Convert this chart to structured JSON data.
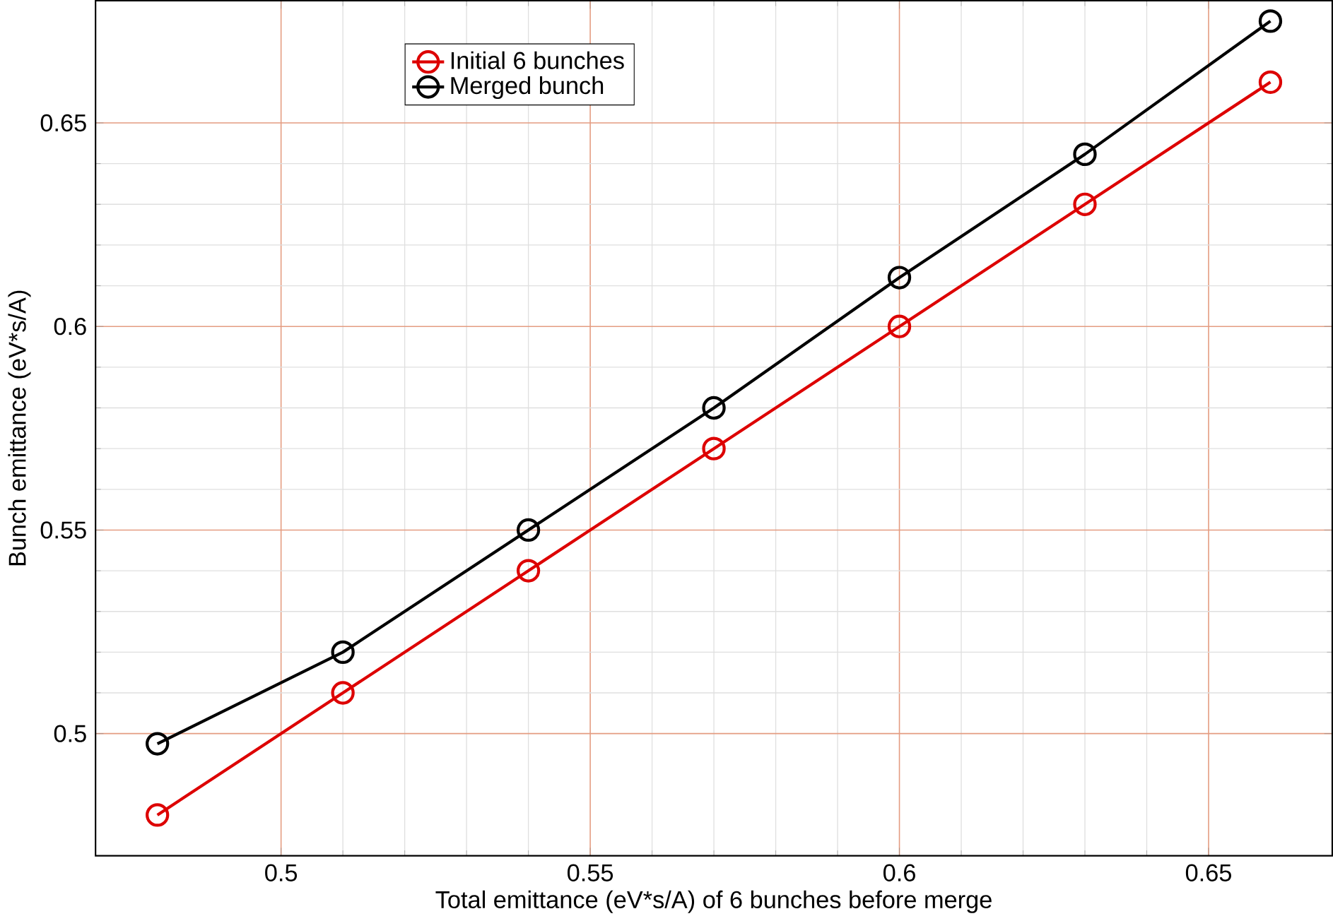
{
  "chart_data": {
    "type": "line",
    "xlabel": "Total emittance (eV*s/A) of 6 bunches before merge",
    "ylabel": "Bunch emittance (eV*s/A)",
    "x": [
      0.48,
      0.51,
      0.54,
      0.57,
      0.6,
      0.63,
      0.66
    ],
    "series": [
      {
        "name": "Initial 6 bunches",
        "color": "#dd0000",
        "values": [
          0.48,
          0.51,
          0.54,
          0.57,
          0.6,
          0.63,
          0.66
        ]
      },
      {
        "name": "Merged bunch",
        "color": "#000000",
        "values": [
          0.4975,
          0.52,
          0.55,
          0.58,
          0.612,
          0.6423,
          0.675
        ]
      }
    ],
    "xlim": [
      0.47,
      0.67
    ],
    "ylim": [
      0.47,
      0.68
    ],
    "xticks": [
      0.5,
      0.55,
      0.6,
      0.65
    ],
    "yticks": [
      0.5,
      0.55,
      0.6,
      0.65
    ],
    "grid": true,
    "legend": "top",
    "marker": "circle",
    "line_style": "solid"
  }
}
